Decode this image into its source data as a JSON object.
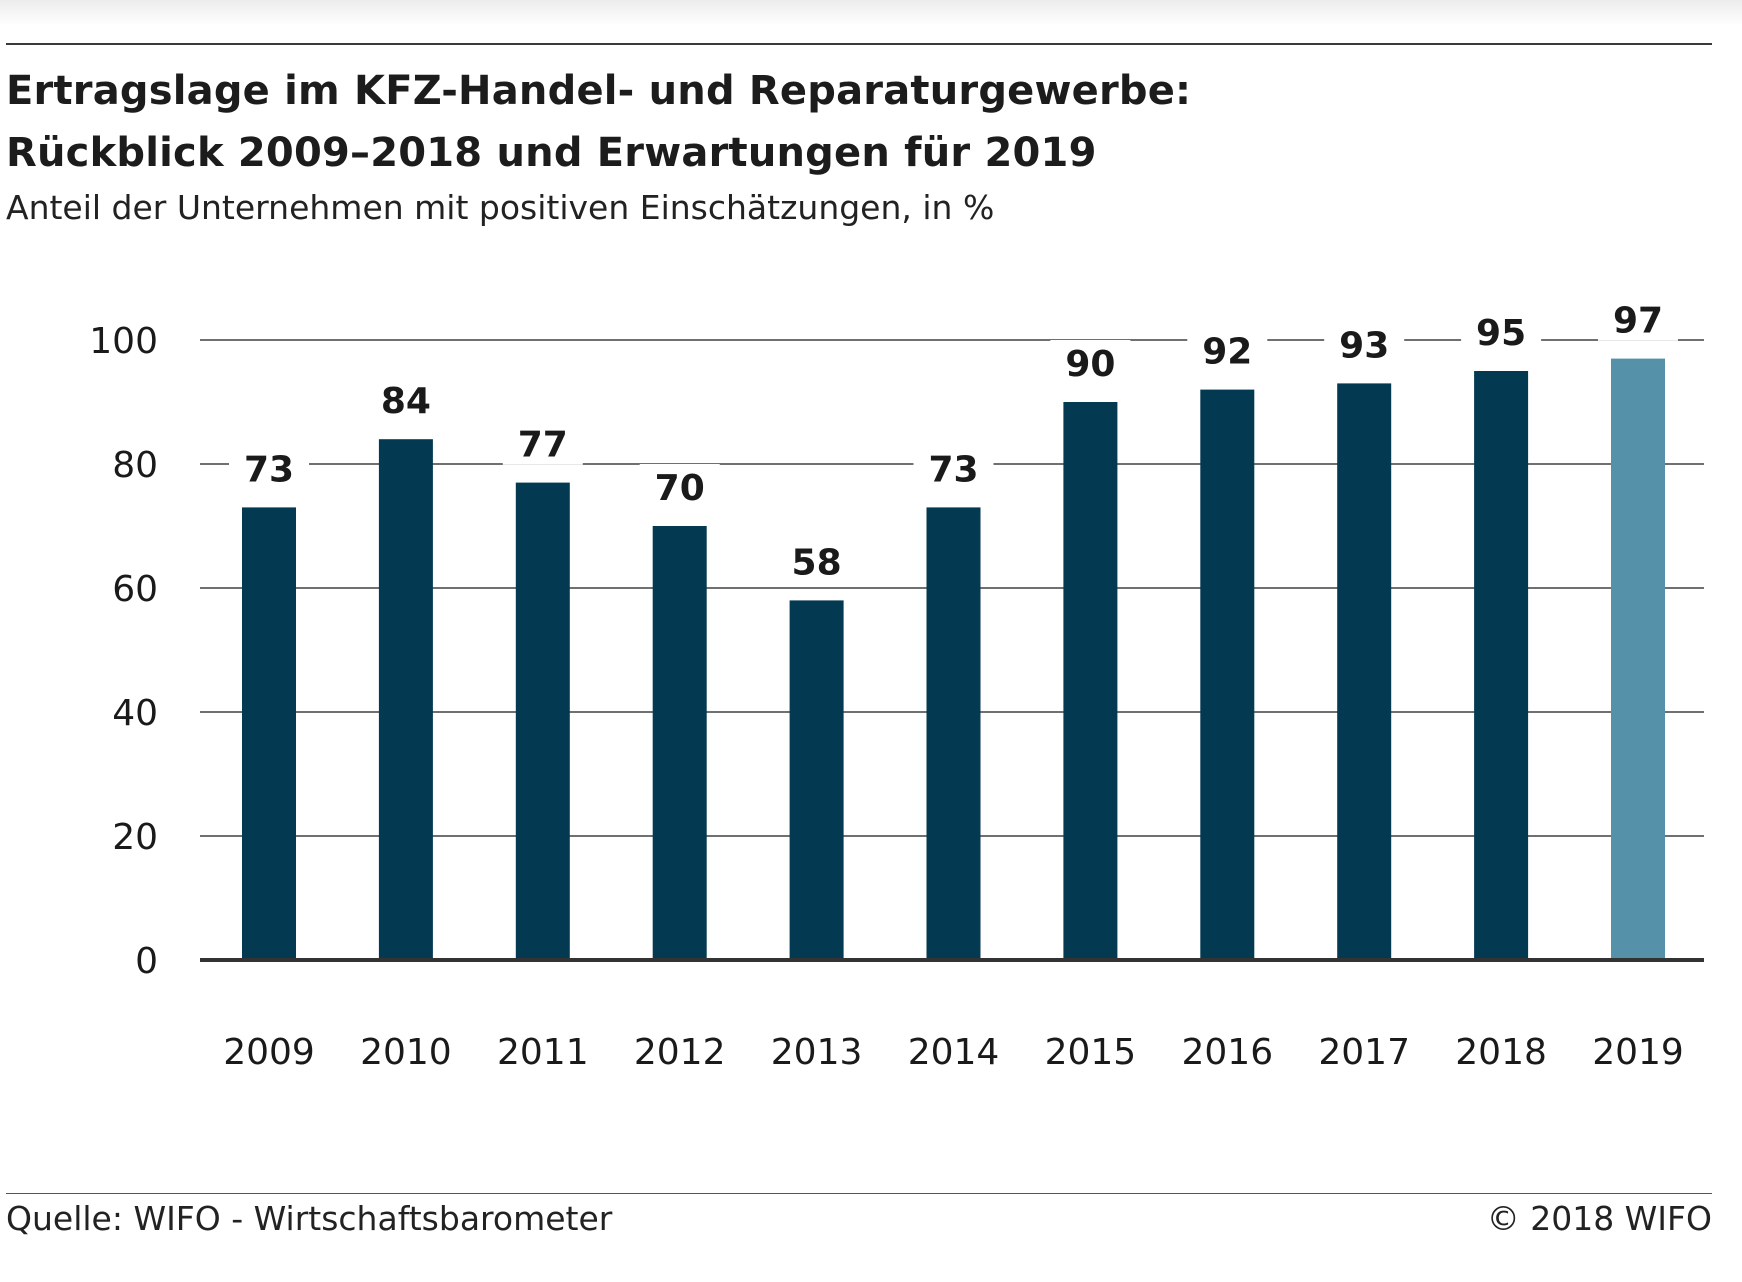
{
  "header": {
    "title_line1": "Ertragslage im KFZ-Handel- und Reparaturgewerbe:",
    "title_line2": "Rückblick 2009–2018 und Erwartungen für 2019",
    "subtitle": "Anteil der Unternehmen mit positiven Einschätzungen, in %"
  },
  "footer": {
    "source": "Quelle: WIFO - Wirtschaftsbarometer",
    "copyright": "© 2018 WIFO"
  },
  "colors": {
    "bar_actual": "#033a51",
    "bar_forecast": "#5591a8",
    "gridline": "#1a1a1a",
    "text": "#1a1a1a"
  },
  "chart_data": {
    "type": "bar",
    "title": "Ertragslage im KFZ-Handel- und Reparaturgewerbe: Rückblick 2009–2018 und Erwartungen für 2019",
    "subtitle": "Anteil der Unternehmen mit positiven Einschätzungen, in %",
    "xlabel": "",
    "ylabel": "",
    "categories": [
      "2009",
      "2010",
      "2011",
      "2012",
      "2013",
      "2014",
      "2015",
      "2016",
      "2017",
      "2018",
      "2019"
    ],
    "values": [
      73,
      84,
      77,
      70,
      58,
      73,
      90,
      92,
      93,
      95,
      97
    ],
    "forecast_categories": [
      "2019"
    ],
    "ylim": [
      0,
      100
    ],
    "yticks": [
      0,
      20,
      40,
      60,
      80,
      100
    ],
    "grid": true,
    "data_labels": true,
    "legend": "none"
  }
}
